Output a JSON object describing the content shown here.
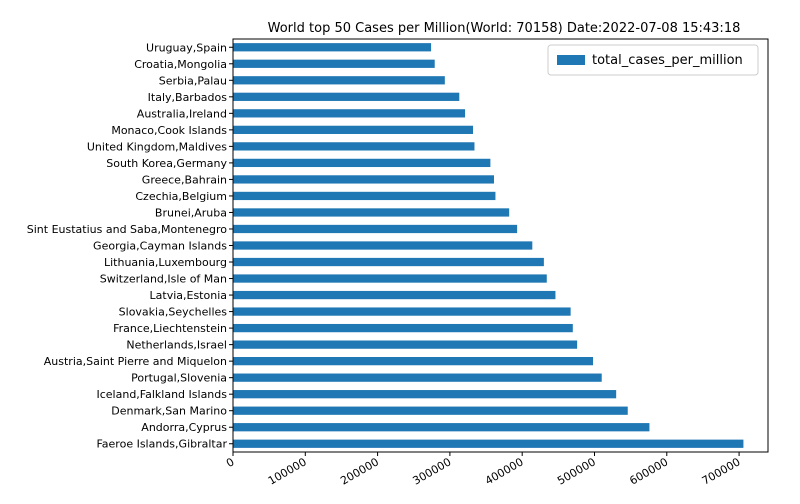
{
  "chart_data": {
    "type": "bar",
    "orientation": "horizontal",
    "title": "World top 50 Cases per Million(World: 70158) Date:2022-07-08 15:43:18",
    "xlabel": "",
    "ylabel": "",
    "xlim": [
      0,
      740000
    ],
    "x_ticks": [
      0,
      100000,
      200000,
      300000,
      400000,
      500000,
      600000,
      700000
    ],
    "grid": false,
    "legend": {
      "position": "top-right",
      "entries": [
        "total_cases_per_million"
      ]
    },
    "categories": [
      "Faeroe Islands,Gibraltar",
      "Andorra,Cyprus",
      "Denmark,San Marino",
      "Iceland,Falkland Islands",
      "Portugal,Slovenia",
      "Austria,Saint Pierre and Miquelon",
      "Netherlands,Israel",
      "France,Liechtenstein",
      "Slovakia,Seychelles",
      "Latvia,Estonia",
      "Switzerland,Isle of Man",
      "Lithuania,Luxembourg",
      "Georgia,Cayman Islands",
      "Sint Eustatius and Saba,Montenegro",
      "Brunei,Aruba",
      "Czechia,Belgium",
      "Greece,Bahrain",
      "South Korea,Germany",
      "United Kingdom,Maldives",
      "Monaco,Cook Islands",
      "Australia,Ireland",
      "Italy,Barbados",
      "Serbia,Palau",
      "Croatia,Mongolia",
      "Uruguay,Spain"
    ],
    "series": [
      {
        "name": "total_cases_per_million",
        "color": "#1f77b4",
        "values": [
          706000,
          576000,
          546000,
          530000,
          510000,
          498000,
          476000,
          470000,
          467000,
          446000,
          434000,
          430000,
          414000,
          393000,
          382000,
          363000,
          361000,
          356000,
          334000,
          332000,
          321000,
          313000,
          293000,
          279000,
          274000
        ]
      }
    ]
  }
}
